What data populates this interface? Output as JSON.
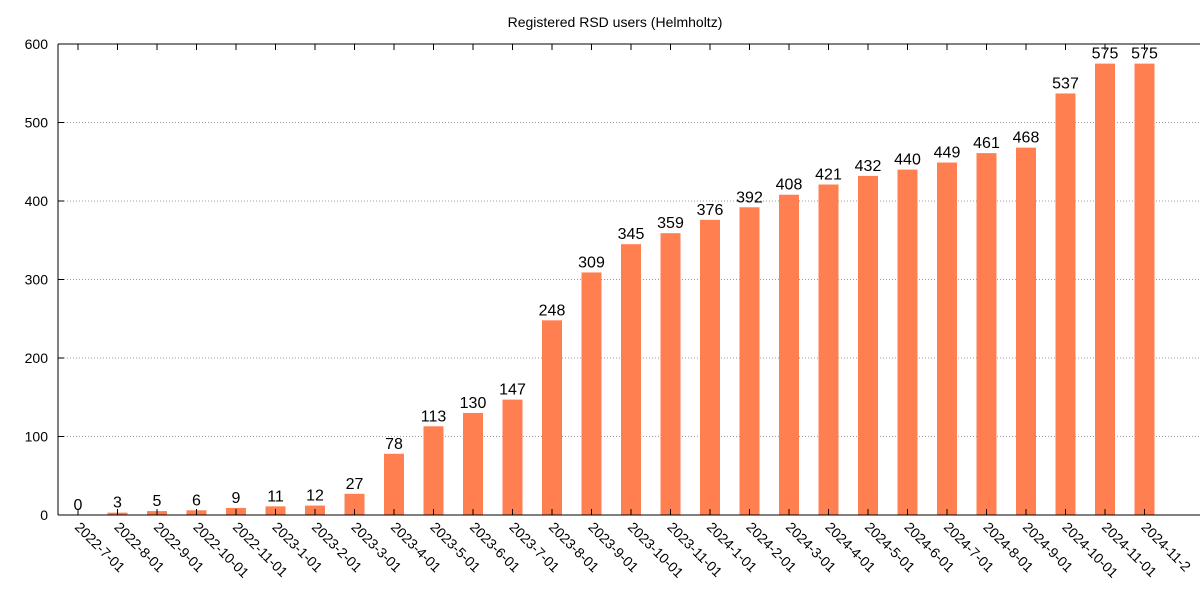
{
  "chart_data": {
    "type": "bar",
    "title": "Registered RSD users (Helmholtz)",
    "xlabel": "",
    "ylabel": "",
    "ylim": [
      0,
      600
    ],
    "yticks": [
      0,
      100,
      200,
      300,
      400,
      500,
      600
    ],
    "grid": true,
    "bar_color": "#ff7f50",
    "categories": [
      "2022-7-01",
      "2022-8-01",
      "2022-9-01",
      "2022-10-01",
      "2022-11-01",
      "2023-1-01",
      "2023-2-01",
      "2023-3-01",
      "2023-4-01",
      "2023-5-01",
      "2023-6-01",
      "2023-7-01",
      "2023-8-01",
      "2023-9-01",
      "2023-10-01",
      "2023-11-01",
      "2024-1-01",
      "2024-2-01",
      "2024-3-01",
      "2024-4-01",
      "2024-5-01",
      "2024-6-01",
      "2024-7-01",
      "2024-8-01",
      "2024-9-01",
      "2024-10-01",
      "2024-11-01",
      "2024-11-2"
    ],
    "values": [
      0,
      3,
      5,
      6,
      9,
      11,
      12,
      27,
      78,
      113,
      130,
      147,
      248,
      309,
      345,
      359,
      376,
      392,
      408,
      421,
      432,
      440,
      449,
      461,
      468,
      537,
      575,
      575
    ]
  }
}
